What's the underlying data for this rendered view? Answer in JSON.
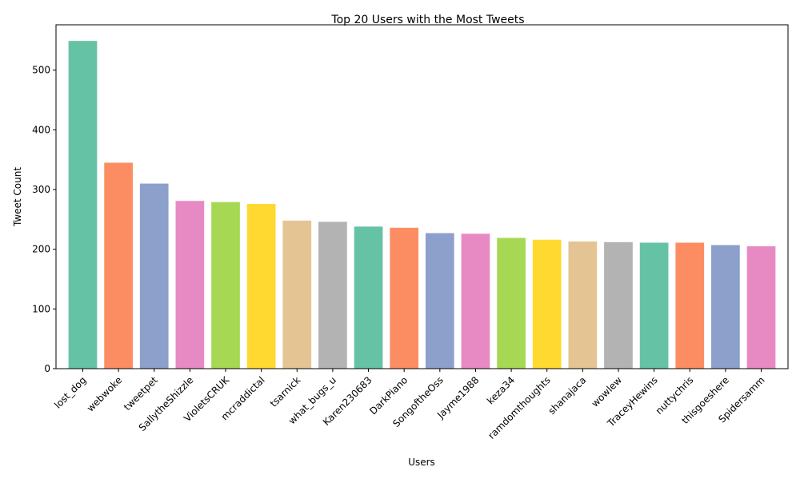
{
  "chart_data": {
    "type": "bar",
    "title": "Top 20 Users with the Most Tweets",
    "xlabel": "Users",
    "ylabel": "Tweet Count",
    "categories": [
      "lost_dog",
      "webwoke",
      "tweetpet",
      "SallytheShizzle",
      "VioletsCRUK",
      "mcraddictal",
      "tsarnick",
      "what_bugs_u",
      "Karen230683",
      "DarkPiano",
      "SongoftheOss",
      "Jayme1988",
      "keza34",
      "ramdomthoughts",
      "shanajaca",
      "wowlew",
      "TraceyHewins",
      "nuttychris",
      "thisgoeshere",
      "Spidersamm"
    ],
    "values": [
      549,
      345,
      310,
      281,
      279,
      276,
      248,
      246,
      238,
      236,
      227,
      226,
      219,
      216,
      213,
      212,
      211,
      211,
      207,
      205
    ],
    "ylim": [
      0,
      576
    ],
    "yticks": [
      0,
      100,
      200,
      300,
      400,
      500
    ],
    "grid": false,
    "legend": "none",
    "colors": [
      "#66c2a5",
      "#fc8d62",
      "#8da0cb",
      "#e78ac3",
      "#a6d854",
      "#ffd92f",
      "#e5c494",
      "#b3b3b3"
    ]
  }
}
